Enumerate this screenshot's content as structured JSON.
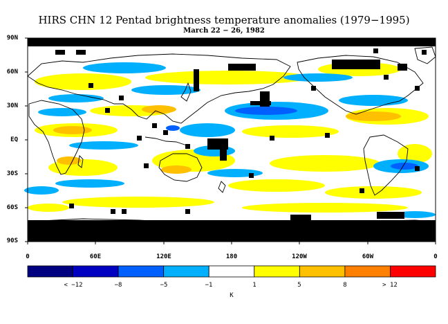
{
  "title": "HIRS CHN 12 Pentad brightness temperature anomalies (1979−1995)",
  "subtitle": "March 22 − 26, 1982",
  "lat_labels": [
    "90N",
    "60N",
    "30N",
    "EQ",
    "30S",
    "60S",
    "90S"
  ],
  "lon_labels": [
    "0",
    "60E",
    "120E",
    "180",
    "120W",
    "60W",
    "0"
  ],
  "colorbar": {
    "colors": [
      "#000080",
      "#0000c0",
      "#0060ff",
      "#00b0ff",
      "#ffffff",
      "#ffff00",
      "#ffc000",
      "#ff8000",
      "#ff0000"
    ],
    "labels": [
      "< −12",
      "−8",
      "−5",
      "−1",
      "1",
      "5",
      "8",
      "> 12"
    ],
    "unit": "K"
  },
  "legend_colors": {
    "missing": "#000000",
    "land_outline": "#000000"
  }
}
